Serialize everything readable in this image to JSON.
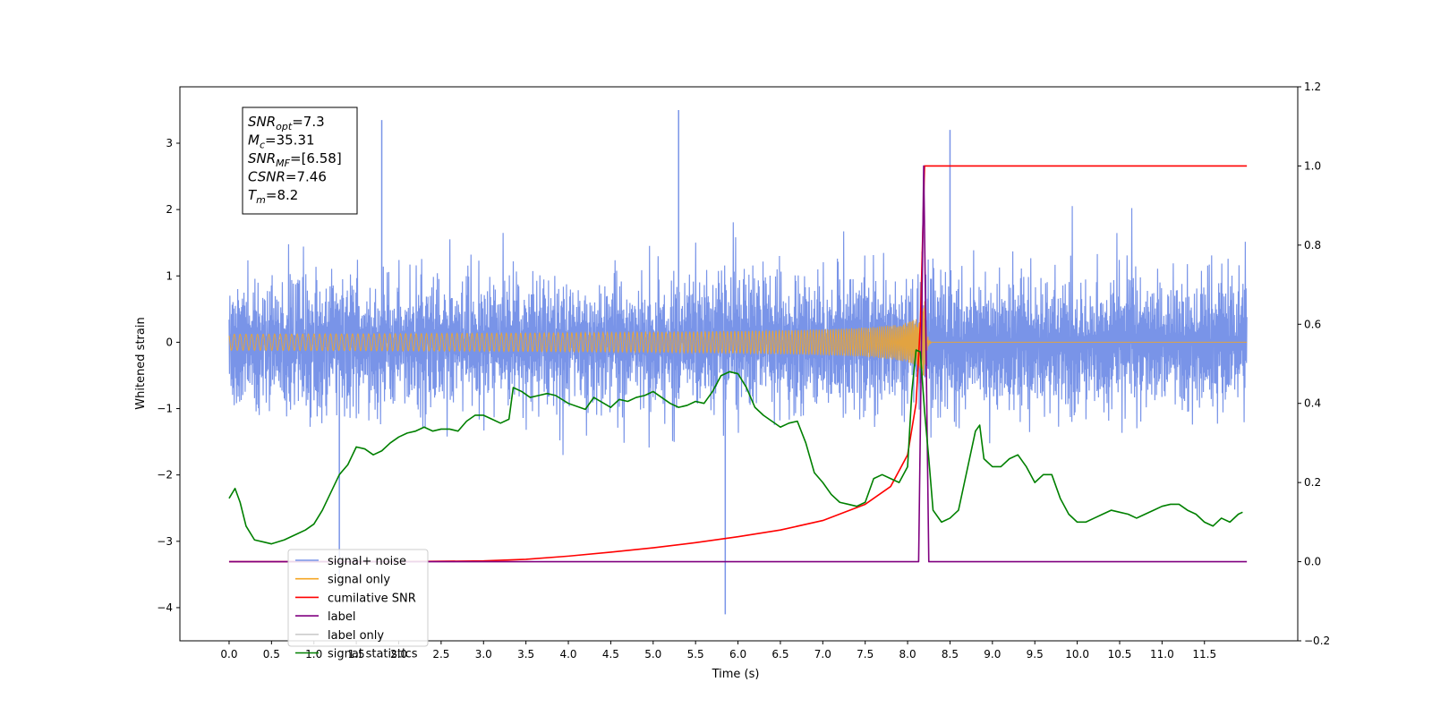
{
  "chart_data": {
    "type": "line",
    "title": "",
    "xlabel": "Time (s)",
    "ylabel": "Whitened strain",
    "ylabel_right": "",
    "xlim": [
      -0.58,
      12.6
    ],
    "ylim": [
      -4.5,
      3.85
    ],
    "ylim_right": [
      -0.2,
      1.2
    ],
    "x_ticks": [
      "0.0",
      "0.5",
      "1.0",
      "1.5",
      "2.0",
      "2.5",
      "3.0",
      "3.5",
      "4.0",
      "4.5",
      "5.0",
      "5.5",
      "6.0",
      "6.5",
      "7.0",
      "7.5",
      "8.0",
      "8.5",
      "9.0",
      "9.5",
      "10.0",
      "10.5",
      "11.0",
      "11.5"
    ],
    "y_ticks": [
      "3",
      "2",
      "1",
      "0",
      "−1",
      "−2",
      "−3",
      "−4"
    ],
    "y_ticks_right": [
      "1.2",
      "1.0",
      "0.8",
      "0.6",
      "0.4",
      "0.2",
      "0.0",
      "−0.2"
    ],
    "grid": false,
    "legend_position": "lower-left",
    "annotation": {
      "lines": [
        {
          "var": "SNR",
          "sub": "opt",
          "value": "=7.3"
        },
        {
          "var": "M",
          "sub": "c",
          "value": "=35.31"
        },
        {
          "var": "SNR",
          "sub": "MF",
          "value": "=[6.58]"
        },
        {
          "var": "CSNR",
          "sub": "",
          "value": "=7.46"
        },
        {
          "var": "T",
          "sub": "m",
          "value": "=8.2"
        }
      ]
    },
    "series": [
      {
        "name": "signal+ noise",
        "color": "#7994e8",
        "axis": "left",
        "x_range": [
          0.0,
          12.0
        ],
        "typical_band": [
          -1.9,
          2.0
        ],
        "notable_spikes": [
          {
            "x": 1.8,
            "y": 3.35
          },
          {
            "x": 5.3,
            "y": 3.5
          },
          {
            "x": 8.5,
            "y": 3.2
          },
          {
            "x": 5.85,
            "y": -4.1
          },
          {
            "x": 1.3,
            "y": -3.5
          }
        ]
      },
      {
        "name": "signal only",
        "color": "#f5a623",
        "axis": "left",
        "merger_time": 8.2,
        "peak_amplitude": 0.62
      },
      {
        "name": "cumilative SNR",
        "color": "#ff0000",
        "axis": "right",
        "x": [
          0.0,
          2.0,
          3.0,
          3.5,
          4.0,
          4.5,
          5.0,
          5.5,
          6.0,
          6.5,
          7.0,
          7.5,
          7.8,
          8.0,
          8.1,
          8.15,
          8.2,
          12.0
        ],
        "y": [
          0.0,
          0.0,
          0.002,
          0.006,
          0.014,
          0.024,
          0.035,
          0.048,
          0.063,
          0.08,
          0.104,
          0.145,
          0.19,
          0.27,
          0.4,
          0.6,
          1.0,
          1.0
        ]
      },
      {
        "name": "label",
        "color": "#800080",
        "axis": "right",
        "x": [
          0.0,
          8.13,
          8.19,
          8.25,
          12.0
        ],
        "y": [
          0.0,
          0.0,
          1.0,
          0.0,
          0.0
        ]
      },
      {
        "name": "label only",
        "color": "#cccccc",
        "axis": "right",
        "x": [],
        "y": []
      },
      {
        "name": "signal statistics",
        "color": "#008000",
        "axis": "right",
        "x": [
          0.0,
          0.07,
          0.13,
          0.2,
          0.3,
          0.4,
          0.5,
          0.65,
          0.8,
          0.9,
          1.0,
          1.1,
          1.2,
          1.3,
          1.4,
          1.5,
          1.6,
          1.7,
          1.8,
          1.9,
          2.0,
          2.1,
          2.2,
          2.3,
          2.4,
          2.5,
          2.6,
          2.7,
          2.8,
          2.9,
          3.0,
          3.1,
          3.2,
          3.3,
          3.35,
          3.45,
          3.55,
          3.65,
          3.75,
          3.85,
          4.0,
          4.2,
          4.3,
          4.5,
          4.6,
          4.7,
          4.8,
          4.9,
          5.0,
          5.2,
          5.3,
          5.4,
          5.5,
          5.6,
          5.7,
          5.8,
          5.9,
          6.0,
          6.1,
          6.2,
          6.3,
          6.4,
          6.5,
          6.6,
          6.7,
          6.8,
          6.9,
          7.0,
          7.1,
          7.2,
          7.3,
          7.4,
          7.5,
          7.6,
          7.7,
          7.8,
          7.9,
          8.0,
          8.05,
          8.1,
          8.15,
          8.2,
          8.25,
          8.3,
          8.4,
          8.5,
          8.6,
          8.7,
          8.8,
          8.85,
          8.9,
          9.0,
          9.1,
          9.2,
          9.3,
          9.4,
          9.5,
          9.6,
          9.7,
          9.8,
          9.9,
          10.0,
          10.1,
          10.2,
          10.3,
          10.4,
          10.5,
          10.6,
          10.7,
          10.8,
          10.9,
          11.0,
          11.1,
          11.2,
          11.3,
          11.4,
          11.5,
          11.6,
          11.7,
          11.8,
          11.9,
          11.95
        ],
        "y": [
          0.16,
          0.185,
          0.15,
          0.09,
          0.055,
          0.05,
          0.045,
          0.055,
          0.07,
          0.08,
          0.095,
          0.13,
          0.175,
          0.22,
          0.245,
          0.29,
          0.285,
          0.27,
          0.28,
          0.3,
          0.315,
          0.325,
          0.33,
          0.34,
          0.33,
          0.335,
          0.335,
          0.33,
          0.355,
          0.37,
          0.37,
          0.36,
          0.35,
          0.36,
          0.44,
          0.43,
          0.415,
          0.42,
          0.425,
          0.42,
          0.4,
          0.385,
          0.415,
          0.39,
          0.41,
          0.405,
          0.415,
          0.42,
          0.43,
          0.4,
          0.39,
          0.395,
          0.405,
          0.4,
          0.43,
          0.47,
          0.48,
          0.475,
          0.44,
          0.39,
          0.37,
          0.355,
          0.34,
          0.35,
          0.355,
          0.3,
          0.225,
          0.2,
          0.17,
          0.15,
          0.145,
          0.14,
          0.15,
          0.21,
          0.22,
          0.21,
          0.2,
          0.24,
          0.43,
          0.535,
          0.53,
          0.38,
          0.26,
          0.13,
          0.1,
          0.11,
          0.13,
          0.23,
          0.33,
          0.345,
          0.26,
          0.24,
          0.24,
          0.26,
          0.27,
          0.24,
          0.2,
          0.22,
          0.22,
          0.16,
          0.12,
          0.1,
          0.1,
          0.11,
          0.12,
          0.13,
          0.125,
          0.12,
          0.11,
          0.12,
          0.13,
          0.14,
          0.145,
          0.145,
          0.13,
          0.12,
          0.1,
          0.09,
          0.11,
          0.1,
          0.12,
          0.125
        ]
      }
    ]
  }
}
